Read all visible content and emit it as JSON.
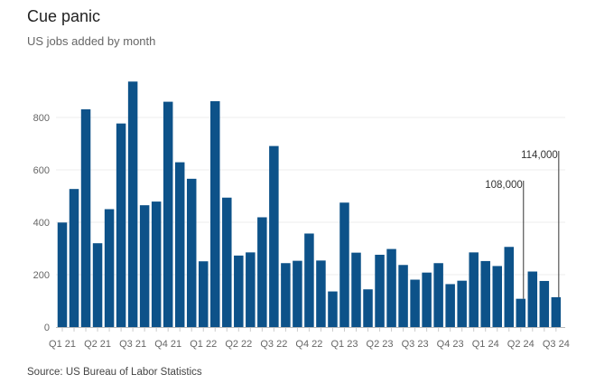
{
  "title": "Cue panic",
  "subtitle": "US jobs added by month",
  "source": "Source: US Bureau of Labor Statistics",
  "chart_data": {
    "type": "bar",
    "title": "Cue panic",
    "subtitle": "US jobs added by month",
    "xlabel": "",
    "ylabel": "",
    "ylim": [
      0,
      950
    ],
    "yticks": [
      0,
      200,
      400,
      600,
      800
    ],
    "grid": true,
    "bar_color": "#0d5289",
    "x_tick_labels": [
      "Q1 21",
      "Q2 21",
      "Q3 21",
      "Q4 21",
      "Q1 22",
      "Q2 22",
      "Q3 22",
      "Q4 22",
      "Q1 23",
      "Q2 23",
      "Q3 23",
      "Q4 23",
      "Q1 24",
      "Q2 24",
      "Q3 24"
    ],
    "values": [
      399,
      527,
      831,
      320,
      450,
      777,
      937,
      465,
      479,
      860,
      629,
      566,
      251,
      862,
      494,
      273,
      285,
      419,
      691,
      244,
      253,
      357,
      254,
      136,
      475,
      284,
      144,
      276,
      298,
      237,
      181,
      208,
      244,
      164,
      177,
      285,
      252,
      233,
      306,
      108,
      212,
      176,
      114
    ],
    "annotations": [
      {
        "label": "108,000",
        "bar_index": 39
      },
      {
        "label": "114,000",
        "bar_index": 42
      }
    ]
  }
}
